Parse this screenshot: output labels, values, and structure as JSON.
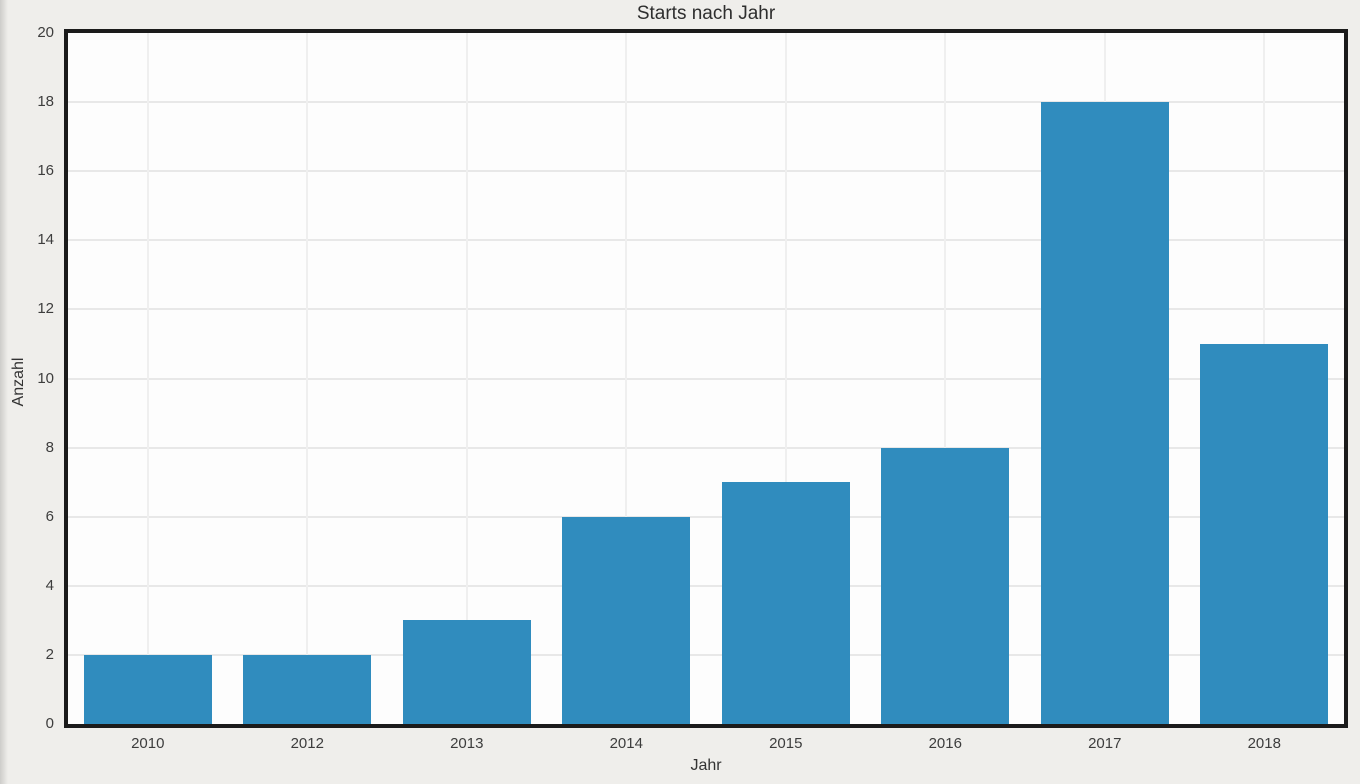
{
  "chart_data": {
    "type": "bar",
    "title": "Starts nach Jahr",
    "xlabel": "Jahr",
    "ylabel": "Anzahl",
    "categories": [
      "2010",
      "2012",
      "2013",
      "2014",
      "2015",
      "2016",
      "2017",
      "2018"
    ],
    "values": [
      2,
      2,
      3,
      6,
      7,
      8,
      18,
      11
    ],
    "ylim": [
      0,
      20
    ],
    "yticks": [
      0,
      2,
      4,
      6,
      8,
      10,
      12,
      14,
      16,
      18,
      20
    ],
    "grid": "both",
    "legend": "none",
    "colors": {
      "bar": "#308cbe",
      "figure_background": "#efeeeb",
      "plot_background": "#fdfdfd",
      "grid_horizontal": "#e8e8e8",
      "grid_vertical": "#efefef",
      "spine": "#1b1b1b",
      "tick_text": "#3d3d3d"
    }
  }
}
